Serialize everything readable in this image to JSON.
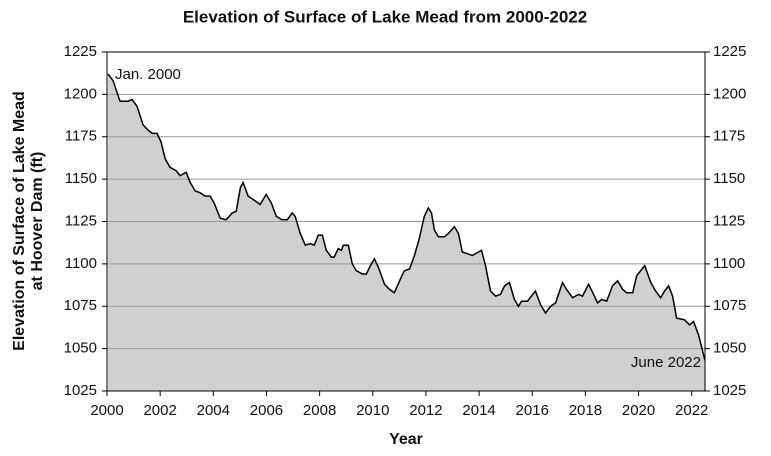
{
  "chart_data": {
    "type": "area",
    "title": "Elevation of Surface of Lake Mead from 2000-2022",
    "xlabel": "Year",
    "ylabel": [
      "Elevation of Surface of Lake Mead",
      "at Hoover Dam (ft)"
    ],
    "x": [
      2000.04,
      2000.23,
      2000.49,
      2000.79,
      2000.94,
      2001.13,
      2001.36,
      2001.54,
      2001.7,
      2001.88,
      2002.03,
      2002.19,
      2002.37,
      2002.6,
      2002.75,
      2002.98,
      2003.13,
      2003.32,
      2003.5,
      2003.69,
      2003.88,
      2004.03,
      2004.26,
      2004.48,
      2004.71,
      2004.86,
      2005.02,
      2005.12,
      2005.31,
      2005.5,
      2005.76,
      2005.99,
      2006.18,
      2006.37,
      2006.59,
      2006.78,
      2006.97,
      2007.08,
      2007.27,
      2007.46,
      2007.65,
      2007.8,
      2007.95,
      2008.1,
      2008.25,
      2008.44,
      2008.55,
      2008.7,
      2008.82,
      2008.89,
      2009.08,
      2009.23,
      2009.38,
      2009.61,
      2009.76,
      2009.91,
      2010.06,
      2010.21,
      2010.44,
      2010.62,
      2010.81,
      2011.04,
      2011.19,
      2011.38,
      2011.57,
      2011.75,
      2011.94,
      2012.09,
      2012.21,
      2012.32,
      2012.47,
      2012.7,
      2012.85,
      2013.07,
      2013.22,
      2013.37,
      2013.56,
      2013.75,
      2013.98,
      2014.09,
      2014.24,
      2014.43,
      2014.62,
      2014.8,
      2014.96,
      2015.14,
      2015.33,
      2015.48,
      2015.6,
      2015.82,
      2015.97,
      2016.12,
      2016.31,
      2016.5,
      2016.69,
      2016.88,
      2017.14,
      2017.29,
      2017.52,
      2017.74,
      2017.89,
      2018.12,
      2018.31,
      2018.46,
      2018.61,
      2018.8,
      2019.02,
      2019.21,
      2019.4,
      2019.55,
      2019.78,
      2019.93,
      2020.23,
      2020.46,
      2020.64,
      2020.83,
      2020.98,
      2021.13,
      2021.28,
      2021.43,
      2021.73,
      2021.92,
      2022.07,
      2022.26,
      2022.5
    ],
    "values": [
      1212,
      1208,
      1196,
      1196,
      1197,
      1193,
      1182,
      1179,
      1177,
      1177,
      1172,
      1162,
      1157,
      1155,
      1152,
      1154,
      1148,
      1143,
      1142,
      1140,
      1140,
      1136,
      1127,
      1126,
      1130,
      1131,
      1145,
      1148,
      1140,
      1138,
      1135,
      1141,
      1136,
      1128,
      1126,
      1126,
      1130,
      1128,
      1118,
      1111,
      1112,
      1111,
      1117,
      1117,
      1108,
      1104,
      1104,
      1109,
      1108,
      1111,
      1111,
      1100,
      1096,
      1094,
      1094,
      1099,
      1103,
      1098,
      1088,
      1085,
      1083,
      1091,
      1096,
      1097,
      1105,
      1115,
      1128,
      1133,
      1130,
      1120,
      1116,
      1116,
      1118,
      1122,
      1118,
      1107,
      1106,
      1105,
      1107,
      1108,
      1099,
      1084,
      1081,
      1082,
      1087,
      1089,
      1079,
      1075,
      1078,
      1078,
      1081,
      1084,
      1076,
      1071,
      1075,
      1077,
      1089,
      1085,
      1080,
      1082,
      1081,
      1088,
      1082,
      1077,
      1079,
      1078,
      1087,
      1090,
      1085,
      1083,
      1083,
      1093,
      1099,
      1089,
      1084,
      1080,
      1084,
      1087,
      1081,
      1068,
      1067,
      1064,
      1066,
      1058,
      1043
    ],
    "color": "#000000",
    "fill": "#d0d0d0",
    "xlim": [
      2000,
      2022.5
    ],
    "xticks": [
      2000,
      2002,
      2004,
      2006,
      2008,
      2010,
      2012,
      2014,
      2016,
      2018,
      2020,
      2022
    ],
    "ylim": [
      1025,
      1225
    ],
    "yticks": [
      1025,
      1050,
      1075,
      1100,
      1125,
      1150,
      1175,
      1200,
      1225
    ],
    "grid": true,
    "annotations": [
      "Jan. 2000",
      "June 2022"
    ]
  }
}
